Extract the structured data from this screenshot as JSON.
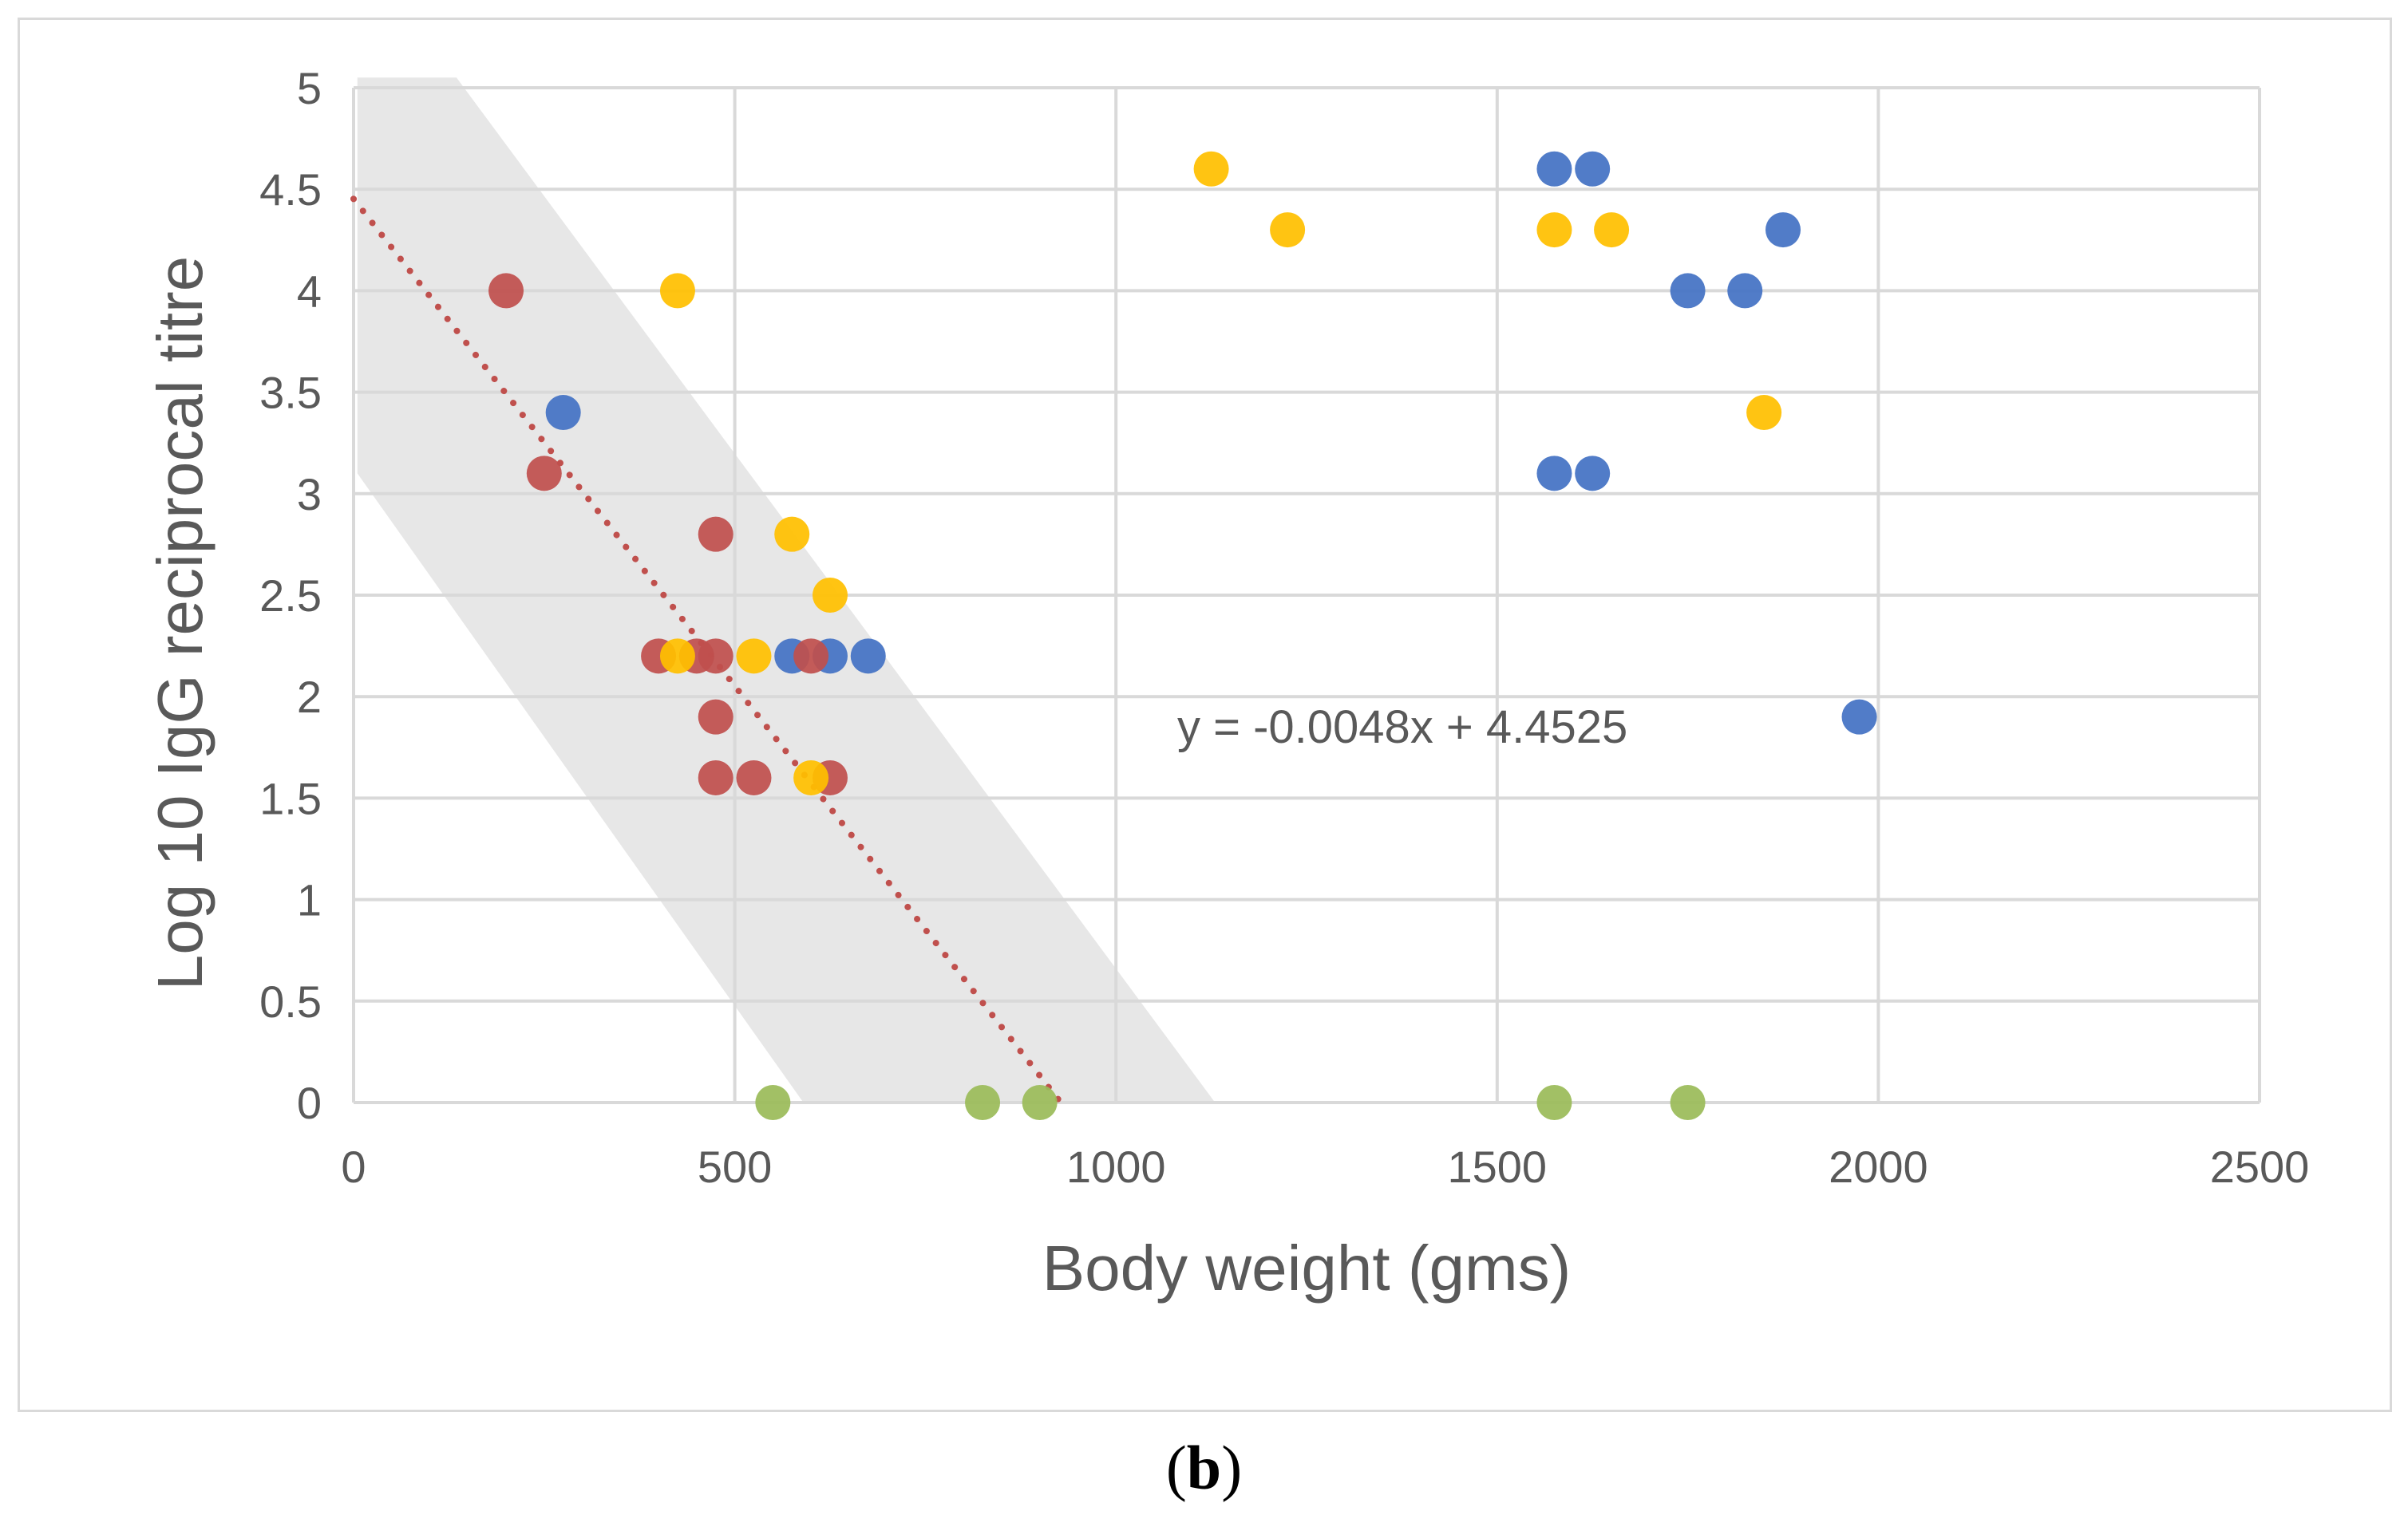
{
  "figure": {
    "caption_open": "(",
    "caption_letter": "b",
    "caption_close": ")"
  },
  "chart_data": {
    "type": "scatter",
    "title": "",
    "xlabel": "Body weight (gms)",
    "ylabel": "Log 10 IgG reciprocal titre",
    "xlim": [
      0,
      2500
    ],
    "ylim": [
      0,
      5
    ],
    "x_ticks": [
      "0",
      "500",
      "1000",
      "1500",
      "2000",
      "2500"
    ],
    "y_ticks": [
      "0",
      "0.5",
      "1",
      "1.5",
      "2",
      "2.5",
      "3",
      "3.5",
      "4",
      "4.5",
      "5"
    ],
    "grid": true,
    "legend": "none",
    "series": [
      {
        "name": "blue",
        "color": "#4472c4",
        "points": [
          [
            275,
            3.4
          ],
          [
            575,
            2.2
          ],
          [
            625,
            2.2
          ],
          [
            675,
            2.2
          ],
          [
            1575,
            4.6
          ],
          [
            1625,
            4.6
          ],
          [
            1875,
            4.3
          ],
          [
            1750,
            4.0
          ],
          [
            1825,
            4.0
          ],
          [
            1575,
            3.1
          ],
          [
            1625,
            3.1
          ],
          [
            1975,
            1.9
          ]
        ]
      },
      {
        "name": "red",
        "color": "#c0504d",
        "points": [
          [
            200,
            4.0
          ],
          [
            250,
            3.1
          ],
          [
            475,
            2.8
          ],
          [
            400,
            2.2
          ],
          [
            450,
            2.2
          ],
          [
            475,
            2.2
          ],
          [
            600,
            2.2
          ],
          [
            475,
            1.9
          ],
          [
            475,
            1.6
          ],
          [
            525,
            1.6
          ],
          [
            625,
            1.6
          ]
        ]
      },
      {
        "name": "yellow",
        "color": "#ffc000",
        "points": [
          [
            425,
            4.0
          ],
          [
            575,
            2.8
          ],
          [
            625,
            2.5
          ],
          [
            425,
            2.2
          ],
          [
            525,
            2.2
          ],
          [
            600,
            1.6
          ],
          [
            1125,
            4.6
          ],
          [
            1225,
            4.3
          ],
          [
            1575,
            4.3
          ],
          [
            1650,
            4.3
          ],
          [
            1850,
            3.4
          ]
        ]
      },
      {
        "name": "green",
        "color": "#9bbb59",
        "points": [
          [
            550,
            0
          ],
          [
            825,
            0
          ],
          [
            900,
            0
          ],
          [
            1575,
            0
          ],
          [
            1750,
            0
          ]
        ]
      }
    ],
    "trendline": {
      "slope": -0.0048,
      "intercept": 4.4525,
      "color": "#c0504d",
      "style": "dotted",
      "label": "y = -0.0048x + 4.4525"
    },
    "shaded_band": {
      "color": "#e7e7e7",
      "polygon": [
        [
          5,
          5.05
        ],
        [
          135,
          5.05
        ],
        [
          1130,
          0
        ],
        [
          590,
          0
        ],
        [
          5,
          3.1
        ]
      ]
    }
  }
}
